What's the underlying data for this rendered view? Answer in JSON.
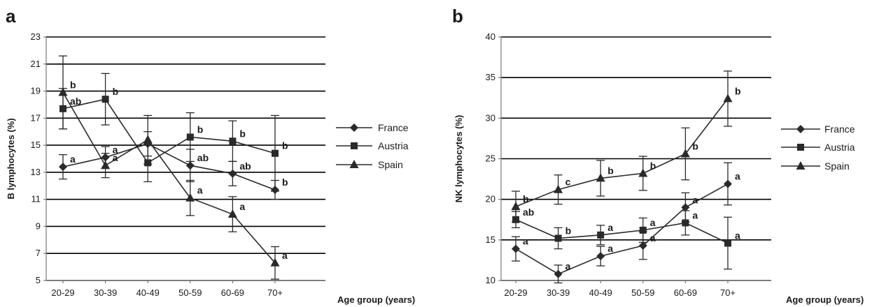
{
  "chart_data": [
    {
      "type": "line",
      "panel": "a",
      "ylabel": "B lymphocytes (%)",
      "xlabel": "Age group (years)",
      "categories": [
        "20-29",
        "30-39",
        "40-49",
        "50-59",
        "60-69",
        "70+"
      ],
      "ylim": [
        5,
        23
      ],
      "yticks": [
        5,
        7,
        9,
        11,
        13,
        15,
        17,
        19,
        21,
        23
      ],
      "grid": true,
      "legend_position": "right",
      "series": [
        {
          "name": "France",
          "marker": "diamond",
          "values": [
            13.4,
            14.1,
            15.1,
            13.5,
            12.9,
            11.7
          ],
          "err": [
            0.9,
            0.8,
            0.9,
            1.2,
            0.9,
            0.7
          ],
          "labels": [
            "a",
            "a",
            "",
            "ab",
            "ab",
            "b"
          ]
        },
        {
          "name": "Austria",
          "marker": "square",
          "values": [
            17.7,
            18.4,
            13.7,
            15.6,
            15.3,
            14.4
          ],
          "err": [
            1.5,
            1.9,
            1.4,
            1.8,
            1.5,
            2.8
          ],
          "labels": [
            "ab",
            "b",
            "",
            "b",
            "b",
            "b"
          ]
        },
        {
          "name": "Spain",
          "marker": "triangle",
          "values": [
            18.9,
            13.5,
            15.4,
            11.1,
            9.9,
            6.3
          ],
          "err": [
            2.7,
            0.9,
            1.8,
            1.3,
            1.3,
            1.2
          ],
          "labels": [
            "b",
            "a",
            "",
            "a",
            "a",
            "a"
          ]
        }
      ]
    },
    {
      "type": "line",
      "panel": "b",
      "ylabel": "NK lymphocytes (%)",
      "xlabel": "Age group (years)",
      "categories": [
        "20-29",
        "30-39",
        "40-49",
        "50-59",
        "60-69",
        "70+"
      ],
      "ylim": [
        10,
        40
      ],
      "yticks": [
        10,
        15,
        20,
        25,
        30,
        35,
        40
      ],
      "grid": true,
      "legend_position": "right",
      "series": [
        {
          "name": "France",
          "marker": "diamond",
          "values": [
            13.9,
            10.8,
            13.0,
            14.3,
            19.0,
            21.9
          ],
          "err": [
            1.5,
            1.1,
            1.2,
            1.7,
            1.8,
            2.6
          ],
          "labels": [
            "a",
            "a",
            "a",
            "a",
            "a",
            "a"
          ]
        },
        {
          "name": "Austria",
          "marker": "square",
          "values": [
            17.5,
            15.2,
            15.6,
            16.2,
            17.1,
            14.6
          ],
          "err": [
            1.0,
            1.3,
            1.2,
            1.5,
            1.5,
            3.2
          ],
          "labels": [
            "ab",
            "b",
            "a",
            "a",
            "a",
            "a"
          ]
        },
        {
          "name": "Spain",
          "marker": "triangle",
          "values": [
            19.1,
            21.2,
            22.6,
            23.2,
            25.6,
            32.4
          ],
          "err": [
            1.9,
            1.8,
            2.2,
            2.1,
            3.2,
            3.4
          ],
          "labels": [
            "b",
            "c",
            "b",
            "b",
            "b",
            "b"
          ]
        }
      ]
    }
  ]
}
